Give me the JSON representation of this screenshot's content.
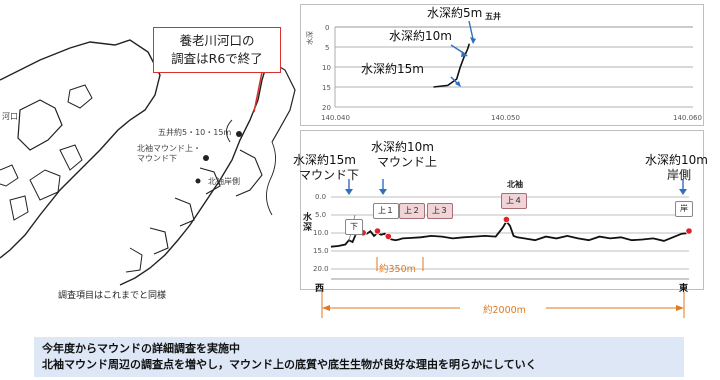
{
  "map": {
    "callout_line1": "養老川河口の",
    "callout_line2": "調査はR6で終了",
    "label_river_mouth": "河口",
    "label_goi_points": "五井約5・10・15m",
    "label_kitasode_line1": "北袖マウンド上・",
    "label_kitasode_line2": "マウンド下",
    "label_kitasode_shore": "北袖岸側",
    "caption": "調査項目はこれまでと同様"
  },
  "chart_goi": {
    "title": "五井",
    "ylabel": "水深",
    "yticks": [
      "0",
      "5",
      "10",
      "15",
      "20"
    ],
    "xticks": [
      "140.040",
      "140.050",
      "140.060"
    ],
    "ann_5": "水深約5m",
    "ann_10": "水深約10m",
    "ann_15": "水深約15m"
  },
  "chart_data": [
    {
      "type": "line",
      "title": "五井",
      "ylabel": "水深",
      "xlim": [
        140.04,
        140.06
      ],
      "ylim": [
        0,
        20
      ],
      "y_inverted": true,
      "x": [
        140.0455,
        140.0463,
        140.0468,
        140.047,
        140.0472,
        140.0474,
        140.0475
      ],
      "values": [
        15.0,
        14.6,
        13.0,
        10.0,
        7.6,
        5.6,
        4.2
      ]
    },
    {
      "type": "line",
      "title": "北袖",
      "ylabel": "水深",
      "ylim": [
        0,
        20
      ],
      "y_inverted": true,
      "yticks": [
        "0.0",
        "5.0",
        "10.0",
        "15.0",
        "20.0"
      ],
      "x_start_label": "西",
      "x_end_label": "東",
      "x": [
        0,
        2,
        4,
        5,
        6,
        7,
        8,
        9,
        10,
        11,
        12,
        13,
        14,
        15,
        16,
        17,
        18,
        19,
        20,
        22,
        25,
        28,
        31,
        34,
        37,
        40,
        43,
        46,
        48,
        49,
        50,
        51,
        52,
        54,
        57,
        60,
        63,
        66,
        69,
        72,
        75,
        78,
        81,
        84,
        87,
        90,
        93,
        96,
        98,
        100
      ],
      "values": [
        13.8,
        13.6,
        13.2,
        12.0,
        12.5,
        10.2,
        8.2,
        10.5,
        10.2,
        9.5,
        10.8,
        10.0,
        10.5,
        10.2,
        11.5,
        11.8,
        12.0,
        11.8,
        11.5,
        11.4,
        11.2,
        10.8,
        11.0,
        11.5,
        11.2,
        11.0,
        10.8,
        11.0,
        8.5,
        6.8,
        8.0,
        10.8,
        11.2,
        11.5,
        12.0,
        11.0,
        11.5,
        10.8,
        11.5,
        12.0,
        11.0,
        11.5,
        11.2,
        12.0,
        11.8,
        11.5,
        12.2,
        11.0,
        10.2,
        10.0
      ]
    }
  ],
  "chart_kitasode": {
    "title": "北袖",
    "ylabel_1": "水",
    "ylabel_2": "深",
    "yticks": [
      "0.0",
      "5.0",
      "10.0",
      "15.0",
      "20.0"
    ],
    "west": "西",
    "east": "東",
    "ann_15_line1": "水深約15m",
    "ann_15_line2": "マウンド下",
    "ann_10_line1": "水深約10m",
    "ann_10_line2": "マウンド上",
    "ann_shore_line1": "水深約10m",
    "ann_shore_line2": "岸側",
    "tag_shita": "下",
    "tag_ue1": "上１",
    "tag_ue2": "上２",
    "tag_ue3": "上３",
    "tag_ue4": "上４",
    "tag_kishi": "岸",
    "span_350": "約350m",
    "span_2000": "約2000m"
  },
  "banner": {
    "line1": "今年度からマウンドの詳細調査を実施中",
    "line2": "北袖マウンド周辺の調査点を増やし，マウンド上の底質や底生生物が良好な理由を明らかにしていく"
  },
  "colors": {
    "callout_border": "#d9312b",
    "arrow_blue": "#2f6fbd",
    "bracket_orange": "#e07a1f",
    "banner_bg": "#dde7f6",
    "point_red": "#e0202a"
  }
}
